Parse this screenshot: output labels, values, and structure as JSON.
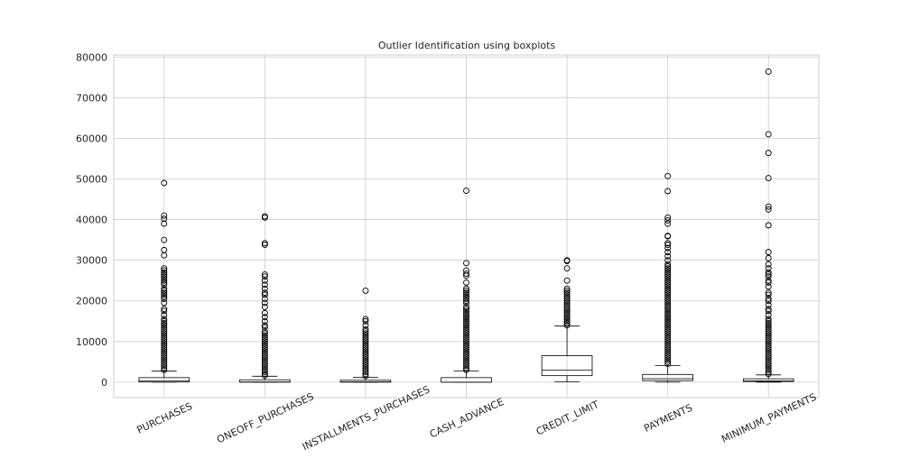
{
  "chart_data": {
    "type": "boxplot",
    "title": "Outlier Identification using boxplots",
    "xlabel": "",
    "ylabel": "",
    "ylim": [
      -3800,
      80500
    ],
    "yticks": [
      0,
      10000,
      20000,
      30000,
      40000,
      50000,
      60000,
      70000,
      80000
    ],
    "grid": true,
    "colors": {
      "box": "#000000",
      "grid": "#cccccc",
      "frame": "#cccccc",
      "outlier_edge": "#000000"
    },
    "categories": [
      "PURCHASES",
      "ONEOFF_PURCHASES",
      "INSTALLMENTS_PURCHASES",
      "CASH_ADVANCE",
      "CREDIT_LIMIT",
      "PAYMENTS",
      "MINIMUM_PAYMENTS"
    ],
    "boxes": [
      {
        "name": "PURCHASES",
        "whisker_low": 0,
        "q1": 40,
        "median": 360,
        "q3": 1110,
        "whisker_high": 2700,
        "outliers": [
          49000,
          41000,
          40200,
          39000,
          35000,
          32500,
          31200,
          28000,
          27500,
          27000,
          26500,
          26000,
          25500,
          25000,
          24500,
          24000,
          23000,
          22500,
          22000,
          21500,
          21000,
          20500,
          19500,
          18000,
          17500,
          16500,
          15500,
          15000,
          14500,
          14000,
          13500,
          13000,
          12500,
          12000,
          11500,
          11000,
          10500,
          10000,
          9500,
          9000,
          8500,
          8000,
          7500,
          7000,
          6500,
          6000,
          5500,
          5000,
          4500,
          4000,
          3500,
          3000
        ]
      },
      {
        "name": "ONEOFF_PURCHASES",
        "whisker_low": 0,
        "q1": 0,
        "median": 40,
        "q3": 580,
        "whisker_high": 1450,
        "outliers": [
          40800,
          40500,
          34200,
          33800,
          26500,
          26000,
          25000,
          24000,
          23000,
          22000,
          21500,
          20500,
          19500,
          18500,
          17000,
          16000,
          15000,
          14000,
          13500,
          12500,
          12000,
          11500,
          11000,
          10500,
          10000,
          9500,
          9000,
          8500,
          8000,
          7500,
          7000,
          6500,
          6000,
          5500,
          5000,
          4500,
          4000,
          3500,
          3000,
          2500,
          2000,
          1600
        ]
      },
      {
        "name": "INSTALLMENTS_PURCHASES",
        "whisker_low": 0,
        "q1": 0,
        "median": 90,
        "q3": 470,
        "whisker_high": 1150,
        "outliers": [
          22500,
          15500,
          15000,
          14000,
          13000,
          12500,
          12000,
          11500,
          11000,
          10500,
          10000,
          9500,
          9000,
          8500,
          8000,
          7500,
          7000,
          6500,
          6000,
          5500,
          5000,
          4500,
          4000,
          3500,
          3000,
          2500,
          2000,
          1500
        ]
      },
      {
        "name": "CASH_ADVANCE",
        "whisker_low": 0,
        "q1": 0,
        "median": 0,
        "q3": 1110,
        "whisker_high": 2780,
        "outliers": [
          47100,
          29300,
          27500,
          26700,
          26200,
          24500,
          23000,
          22500,
          22000,
          21500,
          21000,
          20500,
          20000,
          19500,
          18500,
          18000,
          17500,
          17000,
          16500,
          16000,
          15500,
          15000,
          14500,
          14000,
          13500,
          13000,
          12500,
          12000,
          11500,
          11000,
          10500,
          10000,
          9500,
          9000,
          8500,
          8000,
          7500,
          7000,
          6500,
          6000,
          5500,
          5000,
          4500,
          4000,
          3500,
          3000
        ]
      },
      {
        "name": "CREDIT_LIMIT",
        "whisker_low": 50,
        "q1": 1600,
        "median": 3000,
        "q3": 6500,
        "whisker_high": 13800,
        "outliers": [
          30000,
          29800,
          28000,
          25000,
          23000,
          22500,
          22000,
          21500,
          21000,
          20500,
          20000,
          19500,
          19000,
          18500,
          18000,
          17500,
          17000,
          16500,
          16000,
          15500,
          15000,
          14500,
          14000
        ]
      },
      {
        "name": "PAYMENTS",
        "whisker_low": 0,
        "q1": 380,
        "median": 860,
        "q3": 1900,
        "whisker_high": 4100,
        "outliers": [
          50700,
          47000,
          40500,
          39800,
          39000,
          36000,
          35900,
          34200,
          33800,
          33000,
          32000,
          31000,
          30000,
          29000,
          28500,
          28000,
          27500,
          27000,
          26500,
          26000,
          25500,
          25000,
          24500,
          24000,
          23500,
          23000,
          22500,
          22000,
          21500,
          21000,
          20500,
          20000,
          19500,
          19000,
          18500,
          18000,
          17500,
          17000,
          16500,
          16000,
          15500,
          15000,
          14500,
          14000,
          13500,
          13000,
          12500,
          12000,
          11500,
          11000,
          10500,
          10000,
          9500,
          9000,
          8500,
          8000,
          7500,
          7000,
          6500,
          6000,
          5500,
          5000,
          4500
        ]
      },
      {
        "name": "MINIMUM_PAYMENTS",
        "whisker_low": 0,
        "q1": 170,
        "median": 310,
        "q3": 830,
        "whisker_high": 1790,
        "outliers": [
          76400,
          61000,
          56400,
          50200,
          43200,
          42500,
          38600,
          32000,
          30500,
          29000,
          28000,
          27000,
          26500,
          26000,
          25000,
          24500,
          23500,
          22000,
          21500,
          20500,
          20000,
          19000,
          18000,
          17500,
          16500,
          15500,
          15000,
          14500,
          14000,
          13500,
          13000,
          12500,
          12000,
          11500,
          11000,
          10500,
          10000,
          9500,
          9000,
          8500,
          8000,
          7500,
          7000,
          6500,
          6000,
          5500,
          5000,
          4500,
          4000,
          3500,
          3000,
          2500,
          2000
        ]
      }
    ]
  }
}
